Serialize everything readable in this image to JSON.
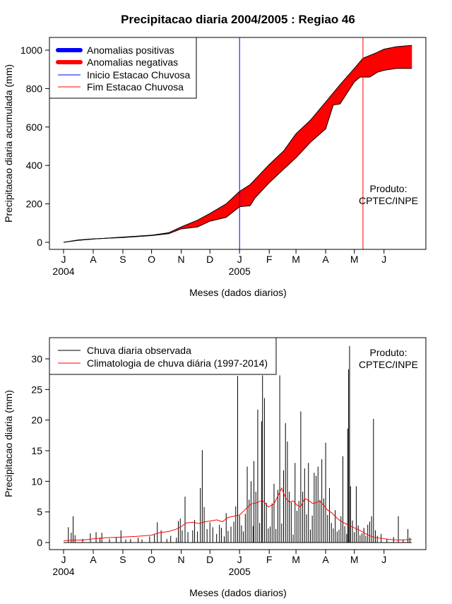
{
  "colors": {
    "positive": "#0000ff",
    "negative": "#ff0000",
    "onset_line": "#0000ff",
    "end_line": "#ff0000",
    "observed": "#000000",
    "climatology": "#ff0000"
  },
  "chart_data": [
    {
      "type": "area",
      "title": "Precipitacao diaria 2004/2005 : Regiao 46",
      "xlabel": "Meses (dados diarios)",
      "ylabel": "Precipitacao diaria acumulada (mm)",
      "ylim": [
        0,
        1000
      ],
      "yticks": [
        0,
        200,
        400,
        600,
        800,
        1000
      ],
      "xticks": [
        {
          "label": "J",
          "day": 0
        },
        {
          "label": "A",
          "day": 31
        },
        {
          "label": "S",
          "day": 62
        },
        {
          "label": "O",
          "day": 92
        },
        {
          "label": "N",
          "day": 123
        },
        {
          "label": "D",
          "day": 153
        },
        {
          "label": "J",
          "day": 184
        },
        {
          "label": "F",
          "day": 215
        },
        {
          "label": "M",
          "day": 243
        },
        {
          "label": "A",
          "day": 274
        },
        {
          "label": "M",
          "day": 304
        },
        {
          "label": "J",
          "day": 335
        }
      ],
      "year_labels": [
        {
          "label": "2004",
          "day": 0
        },
        {
          "label": "2005",
          "day": 184
        }
      ],
      "legend": {
        "position": "top-left",
        "entries": [
          "Anomalias positivas",
          "Anomalias negativas",
          "Inicio Estacao Chuvosa",
          "Fim Estacao Chuvosa"
        ]
      },
      "onset_day": 184,
      "end_day": 313,
      "annotation": {
        "line1": "Produto:",
        "line2": "CPTEC/INPE"
      },
      "climatology_curve": [
        [
          0,
          0
        ],
        [
          15,
          10
        ],
        [
          31,
          17
        ],
        [
          62,
          27
        ],
        [
          92,
          37
        ],
        [
          110,
          50
        ],
        [
          123,
          80
        ],
        [
          140,
          115
        ],
        [
          153,
          150
        ],
        [
          170,
          200
        ],
        [
          184,
          265
        ],
        [
          195,
          300
        ],
        [
          215,
          405
        ],
        [
          230,
          475
        ],
        [
          243,
          565
        ],
        [
          258,
          635
        ],
        [
          274,
          730
        ],
        [
          289,
          820
        ],
        [
          304,
          905
        ],
        [
          313,
          958
        ],
        [
          325,
          982
        ],
        [
          335,
          1005
        ],
        [
          348,
          1018
        ],
        [
          364,
          1025
        ]
      ],
      "observed_curve": [
        [
          0,
          0
        ],
        [
          15,
          12
        ],
        [
          31,
          18
        ],
        [
          62,
          25
        ],
        [
          92,
          35
        ],
        [
          110,
          45
        ],
        [
          123,
          70
        ],
        [
          140,
          80
        ],
        [
          153,
          110
        ],
        [
          170,
          130
        ],
        [
          184,
          185
        ],
        [
          195,
          190
        ],
        [
          200,
          230
        ],
        [
          215,
          310
        ],
        [
          230,
          380
        ],
        [
          243,
          440
        ],
        [
          258,
          520
        ],
        [
          274,
          590
        ],
        [
          282,
          715
        ],
        [
          289,
          720
        ],
        [
          304,
          835
        ],
        [
          310,
          860
        ],
        [
          320,
          860
        ],
        [
          328,
          885
        ],
        [
          335,
          895
        ],
        [
          348,
          905
        ],
        [
          364,
          905
        ]
      ]
    },
    {
      "type": "line",
      "xlabel": "Meses (dados diarios)",
      "ylabel": "Precipitacao diaria (mm)",
      "ylim": [
        0,
        30
      ],
      "yticks": [
        0,
        5,
        10,
        15,
        20,
        25,
        30
      ],
      "legend": {
        "position": "top-left",
        "entries": [
          "Chuva diaria observada",
          "Climatologia de chuva diária (1997-2014)"
        ]
      },
      "annotation": {
        "line1": "Produto:",
        "line2": "CPTEC/INPE"
      },
      "observed_spikes": [
        [
          5,
          2.5
        ],
        [
          8,
          1.6
        ],
        [
          10,
          4.3
        ],
        [
          12,
          1.2
        ],
        [
          20,
          0.6
        ],
        [
          28,
          1.5
        ],
        [
          34,
          1.7
        ],
        [
          38,
          0.8
        ],
        [
          40,
          1.6
        ],
        [
          48,
          0.6
        ],
        [
          55,
          0.9
        ],
        [
          60,
          2.0
        ],
        [
          65,
          0.5
        ],
        [
          70,
          0.6
        ],
        [
          78,
          0.8
        ],
        [
          82,
          0.5
        ],
        [
          90,
          1.0
        ],
        [
          95,
          1.4
        ],
        [
          98,
          3.3
        ],
        [
          102,
          2.0
        ],
        [
          108,
          0.6
        ],
        [
          112,
          1.1
        ],
        [
          118,
          0.8
        ],
        [
          120,
          3.5
        ],
        [
          122,
          3.9
        ],
        [
          124,
          2.0
        ],
        [
          127,
          7.5
        ],
        [
          130,
          1.7
        ],
        [
          135,
          2.0
        ],
        [
          137,
          3.7
        ],
        [
          140,
          1.8
        ],
        [
          143,
          8.9
        ],
        [
          145,
          15.1
        ],
        [
          147,
          5.8
        ],
        [
          150,
          2.2
        ],
        [
          153,
          3.3
        ],
        [
          156,
          2.5
        ],
        [
          160,
          1.4
        ],
        [
          163,
          2.9
        ],
        [
          165,
          2.4
        ],
        [
          168,
          1.0
        ],
        [
          170,
          4.8
        ],
        [
          172,
          1.9
        ],
        [
          175,
          2.6
        ],
        [
          178,
          3.4
        ],
        [
          180,
          5.9
        ],
        [
          182,
          27.2
        ],
        [
          184,
          4.4
        ],
        [
          186,
          2.8
        ],
        [
          188,
          1.8
        ],
        [
          190,
          4.7
        ],
        [
          192,
          12.4
        ],
        [
          194,
          7.0
        ],
        [
          196,
          10.0
        ],
        [
          198,
          2.7
        ],
        [
          199,
          13.3
        ],
        [
          201,
          8.3
        ],
        [
          203,
          21.7
        ],
        [
          205,
          3.2
        ],
        [
          207,
          19.8
        ],
        [
          208,
          27.3
        ],
        [
          210,
          23.6
        ],
        [
          212,
          6.5
        ],
        [
          214,
          2.3
        ],
        [
          216,
          2.6
        ],
        [
          218,
          6.4
        ],
        [
          220,
          9.6
        ],
        [
          222,
          2.2
        ],
        [
          224,
          8.6
        ],
        [
          226,
          27.3
        ],
        [
          228,
          3.1
        ],
        [
          230,
          11.8
        ],
        [
          232,
          19.5
        ],
        [
          234,
          16.5
        ],
        [
          236,
          8.3
        ],
        [
          238,
          6.6
        ],
        [
          240,
          1.3
        ],
        [
          242,
          13.0
        ],
        [
          244,
          5.2
        ],
        [
          246,
          6.8
        ],
        [
          248,
          21.4
        ],
        [
          250,
          8.3
        ],
        [
          252,
          12.1
        ],
        [
          254,
          4.6
        ],
        [
          256,
          13.0
        ],
        [
          258,
          2.1
        ],
        [
          260,
          4.4
        ],
        [
          262,
          11.4
        ],
        [
          264,
          10.9
        ],
        [
          266,
          12.4
        ],
        [
          268,
          7.0
        ],
        [
          270,
          13.6
        ],
        [
          272,
          7.2
        ],
        [
          274,
          16.3
        ],
        [
          276,
          4.5
        ],
        [
          278,
          8.9
        ],
        [
          280,
          3.2
        ],
        [
          282,
          2.3
        ],
        [
          284,
          5.3
        ],
        [
          286,
          1.8
        ],
        [
          288,
          2.1
        ],
        [
          290,
          4.3
        ],
        [
          292,
          14.1
        ],
        [
          294,
          2.7
        ],
        [
          296,
          1.4
        ],
        [
          297,
          18.6
        ],
        [
          298,
          28.3
        ],
        [
          299,
          32.1
        ],
        [
          300,
          9.2
        ],
        [
          302,
          3.6
        ],
        [
          304,
          1.7
        ],
        [
          306,
          9.2
        ],
        [
          308,
          2.8
        ],
        [
          310,
          1.2
        ],
        [
          312,
          1.5
        ],
        [
          314,
          2.4
        ],
        [
          316,
          1.1
        ],
        [
          318,
          2.9
        ],
        [
          320,
          3.4
        ],
        [
          322,
          4.3
        ],
        [
          324,
          20.2
        ],
        [
          326,
          2.0
        ],
        [
          328,
          1.1
        ],
        [
          332,
          1.4
        ],
        [
          338,
          0.6
        ],
        [
          345,
          0.9
        ],
        [
          350,
          4.3
        ],
        [
          355,
          0.5
        ],
        [
          360,
          2.2
        ],
        [
          362,
          0.8
        ]
      ],
      "climatology_curve": [
        [
          0,
          0.3
        ],
        [
          10,
          0.4
        ],
        [
          20,
          0.4
        ],
        [
          31,
          0.6
        ],
        [
          45,
          0.8
        ],
        [
          62,
          0.9
        ],
        [
          75,
          1.0
        ],
        [
          92,
          1.2
        ],
        [
          100,
          1.6
        ],
        [
          110,
          1.8
        ],
        [
          118,
          2.2
        ],
        [
          123,
          2.6
        ],
        [
          128,
          3.2
        ],
        [
          135,
          3.3
        ],
        [
          142,
          3.1
        ],
        [
          148,
          3.4
        ],
        [
          153,
          3.5
        ],
        [
          160,
          3.7
        ],
        [
          166,
          3.4
        ],
        [
          172,
          4.1
        ],
        [
          178,
          4.3
        ],
        [
          184,
          4.5
        ],
        [
          190,
          5.4
        ],
        [
          196,
          6.3
        ],
        [
          202,
          6.5
        ],
        [
          208,
          6.9
        ],
        [
          214,
          5.8
        ],
        [
          220,
          6.3
        ],
        [
          224,
          7.6
        ],
        [
          228,
          8.9
        ],
        [
          232,
          7.3
        ],
        [
          236,
          6.6
        ],
        [
          240,
          6.8
        ],
        [
          244,
          6.1
        ],
        [
          248,
          5.8
        ],
        [
          252,
          7.2
        ],
        [
          256,
          6.9
        ],
        [
          260,
          6.4
        ],
        [
          264,
          6.5
        ],
        [
          268,
          6.8
        ],
        [
          272,
          6.1
        ],
        [
          276,
          5.3
        ],
        [
          280,
          4.9
        ],
        [
          284,
          4.3
        ],
        [
          288,
          3.7
        ],
        [
          292,
          3.3
        ],
        [
          296,
          3.0
        ],
        [
          300,
          2.7
        ],
        [
          304,
          2.4
        ],
        [
          308,
          2.1
        ],
        [
          312,
          1.8
        ],
        [
          316,
          1.4
        ],
        [
          320,
          1.1
        ],
        [
          326,
          0.8
        ],
        [
          332,
          0.7
        ],
        [
          340,
          0.5
        ],
        [
          350,
          0.4
        ],
        [
          364,
          0.5
        ]
      ]
    }
  ]
}
